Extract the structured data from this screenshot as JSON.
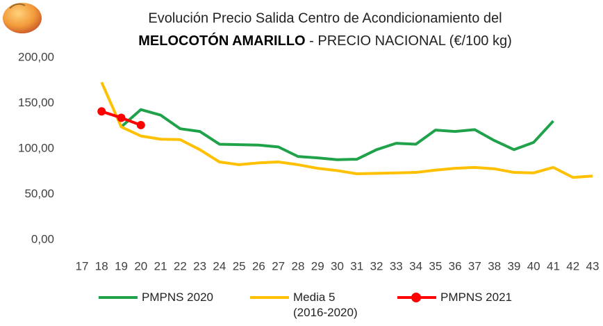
{
  "chart_data": {
    "type": "line",
    "title": "Evolución Precio Salida Centro de Acondicionamiento del",
    "title_highlight": "MELOCOTÓN AMARILLO",
    "title_suffix": " - PRECIO NACIONAL (€/100 kg)",
    "categories": [
      "17",
      "18",
      "19",
      "20",
      "21",
      "22",
      "23",
      "24",
      "25",
      "26",
      "27",
      "28",
      "29",
      "30",
      "31",
      "32",
      "33",
      "34",
      "35",
      "36",
      "37",
      "38",
      "39",
      "40",
      "41",
      "42",
      "43"
    ],
    "ylim": [
      0,
      200
    ],
    "yticks": [
      {
        "value": 0,
        "label": "0,00"
      },
      {
        "value": 50,
        "label": "50,00"
      },
      {
        "value": 100,
        "label": "100,00"
      },
      {
        "value": 150,
        "label": "150,00"
      },
      {
        "value": 200,
        "label": "200,00"
      }
    ],
    "grid": false,
    "series": [
      {
        "name": "PMPNS 2020",
        "color": "#1fa24a",
        "values": [
          null,
          null,
          124,
          143,
          137,
          122,
          119,
          105,
          104.5,
          104,
          102,
          91.5,
          90,
          88,
          88.5,
          99,
          106,
          105,
          120.5,
          119,
          121,
          109,
          99,
          107,
          130.5,
          null,
          null
        ]
      },
      {
        "name": "Media 5 (2016-2020)",
        "color": "#ffc000",
        "values": [
          null,
          173,
          124,
          114,
          110.5,
          110,
          99,
          85.5,
          82.5,
          84.5,
          85.5,
          82.5,
          78.5,
          76,
          72.5,
          73,
          73.5,
          74,
          76.5,
          78.5,
          79.5,
          78,
          74,
          73.5,
          79.5,
          68.5,
          70
        ]
      },
      {
        "name": "PMPNS 2021",
        "color": "#ff0000",
        "markers": true,
        "values": [
          null,
          141,
          134,
          126,
          null,
          null,
          null,
          null,
          null,
          null,
          null,
          null,
          null,
          null,
          null,
          null,
          null,
          null,
          null,
          null,
          null,
          null,
          null,
          null,
          null,
          null,
          null
        ]
      }
    ]
  }
}
